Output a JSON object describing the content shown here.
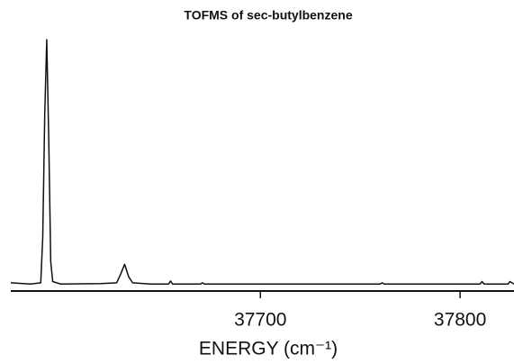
{
  "chart_data": {
    "type": "line",
    "title": "TOFMS of sec-butylbenzene",
    "x_label": "ENERGY (cm⁻¹)",
    "x": [
      37575,
      37585,
      37590,
      37591,
      37592,
      37593,
      37594,
      37595,
      37596,
      37600,
      37620,
      37628,
      37630,
      37632,
      37634,
      37636,
      37645,
      37654,
      37655,
      37656,
      37670,
      37671,
      37672,
      37700,
      37760,
      37761,
      37762,
      37800,
      37810,
      37811,
      37812,
      37824,
      37825,
      37827
    ],
    "series": [
      {
        "color": "#111111",
        "values": [
          1.5,
          1,
          1.5,
          20,
          70,
          100,
          60,
          10,
          2,
          1,
          1.2,
          1.5,
          5,
          9,
          4,
          1.5,
          1,
          1,
          2.2,
          1,
          1,
          1.5,
          1,
          1,
          1,
          1.5,
          1,
          1,
          1,
          2,
          1,
          1,
          2,
          1
        ]
      }
    ],
    "xlim": [
      37575,
      37827
    ],
    "xticks": [
      37700,
      37800
    ],
    "ylim": [
      0,
      100
    ]
  }
}
